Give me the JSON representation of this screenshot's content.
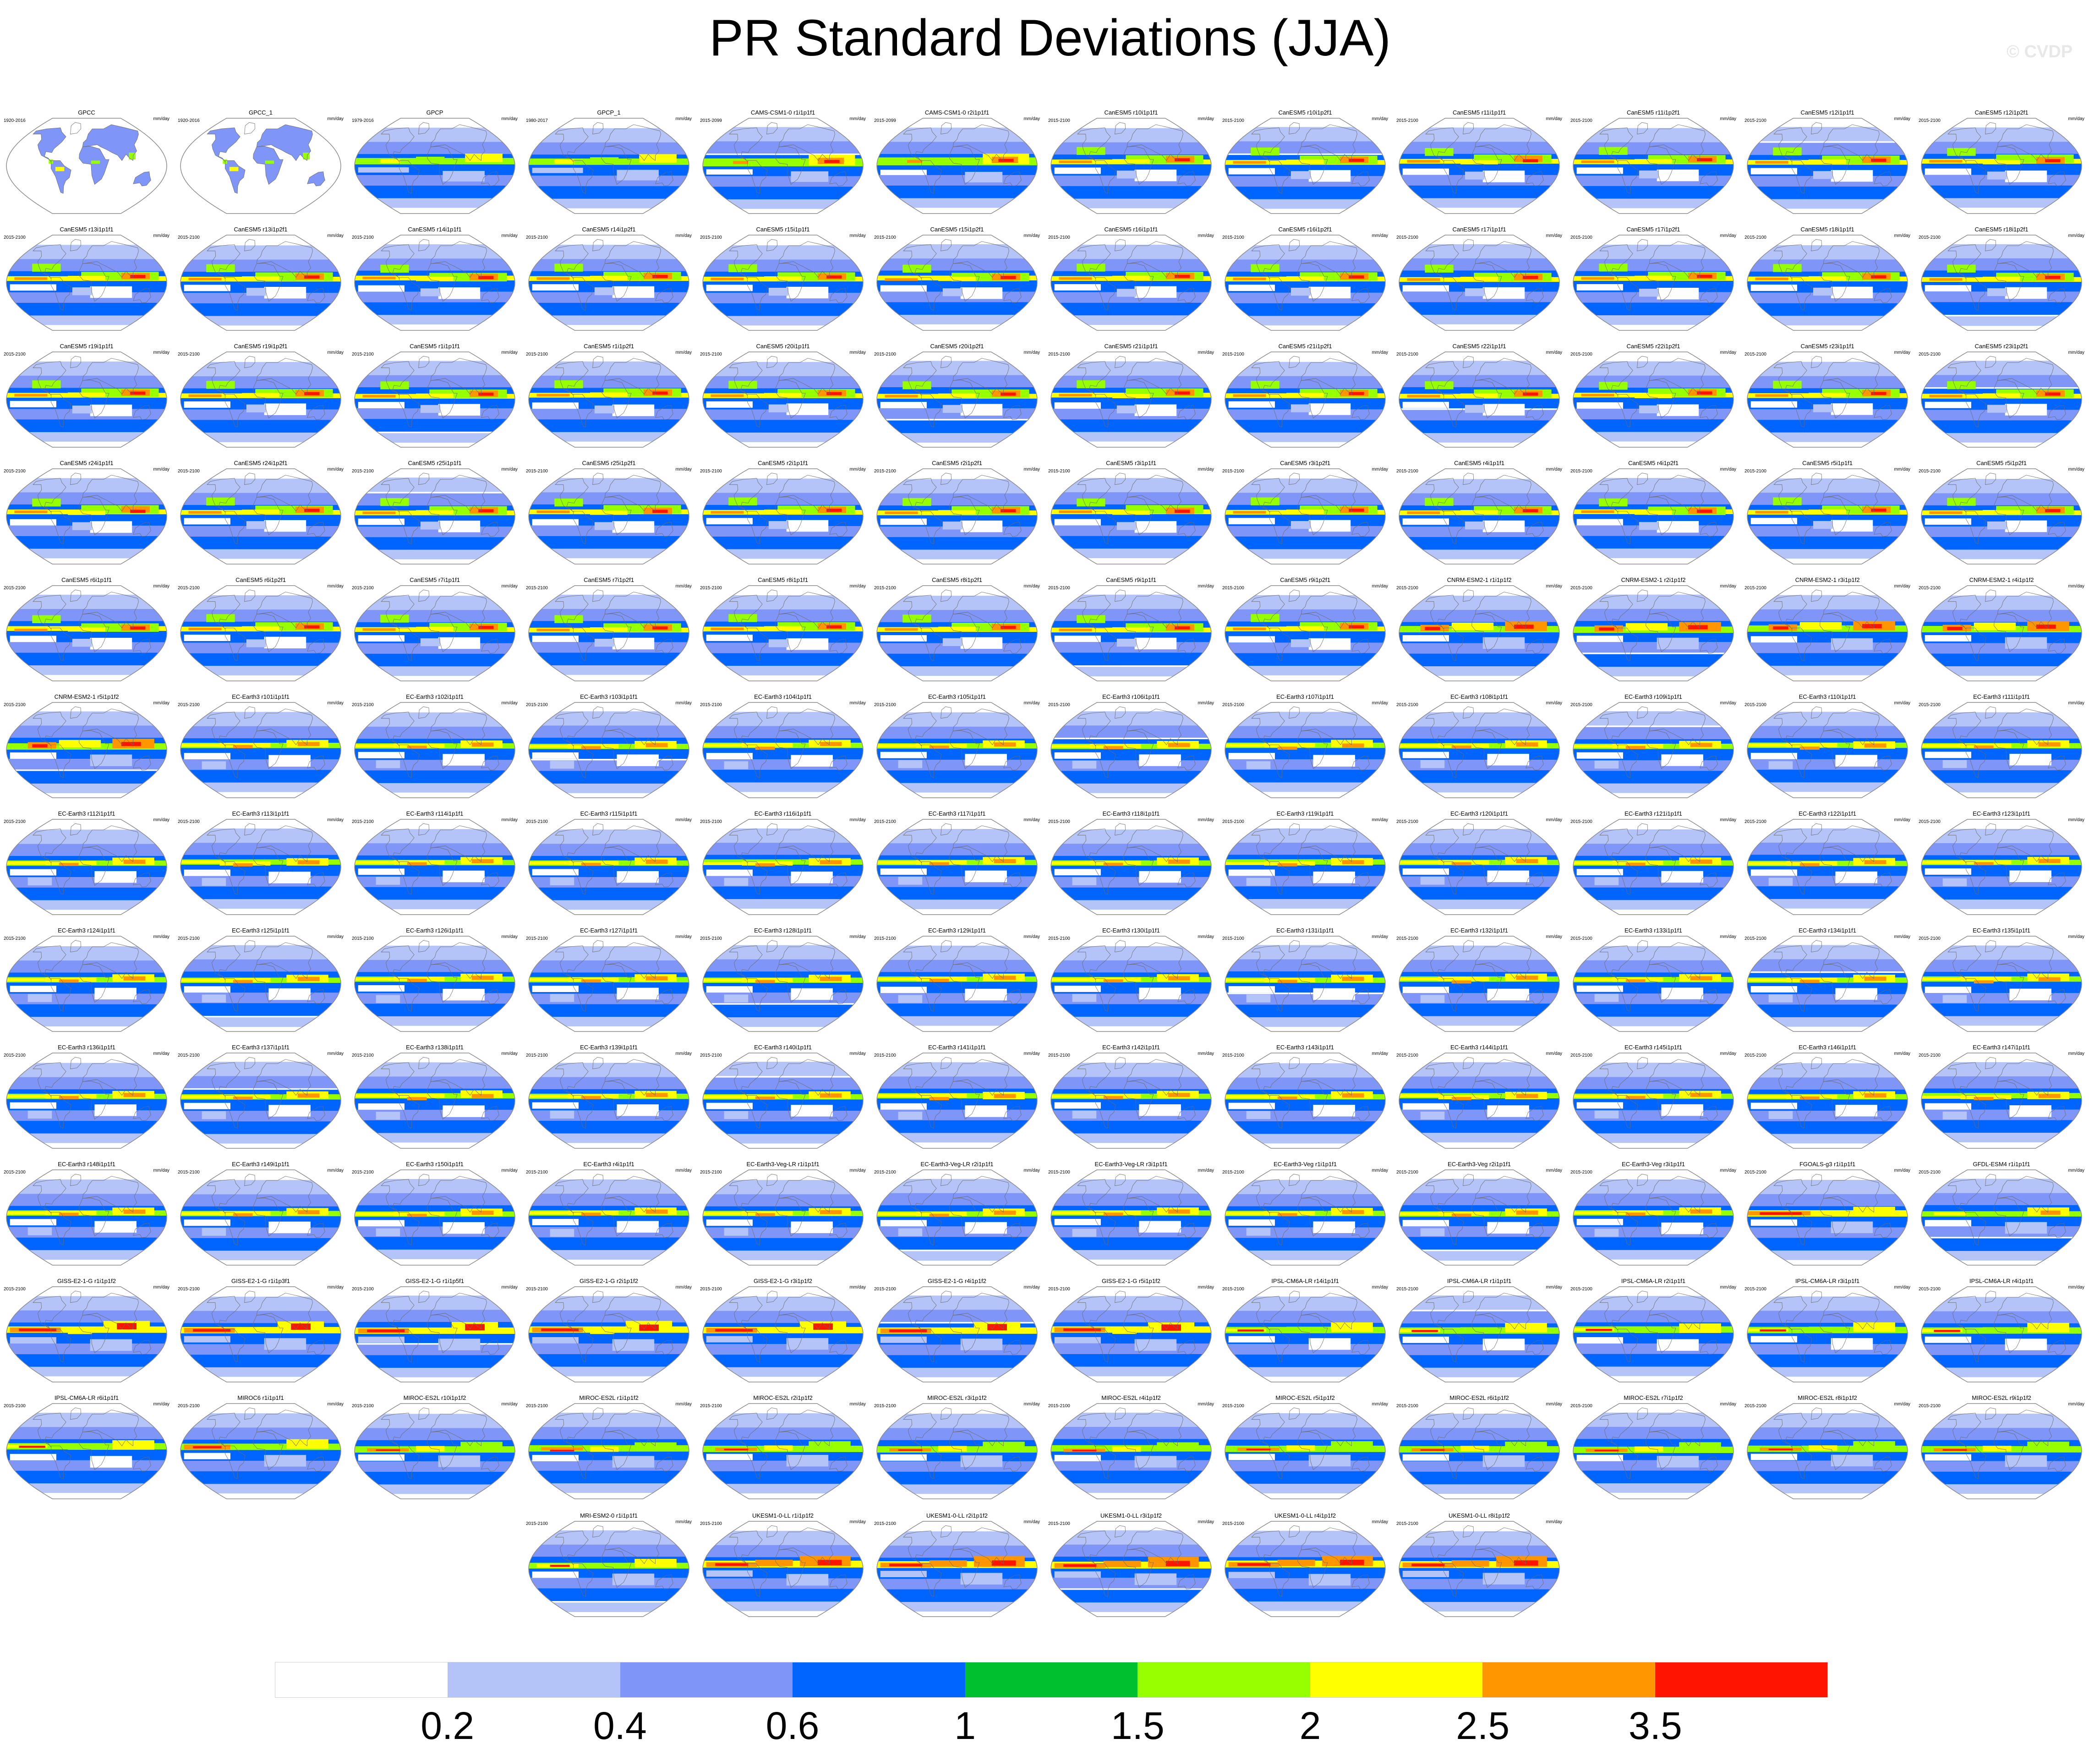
{
  "header": {
    "title": "PR Standard Deviations (JJA)",
    "watermark": "© CVDP"
  },
  "panel_units": "mm/day",
  "colors": {
    "background": "#ffffff",
    "map_outline": "#8a8a8a",
    "coastline": "#6b6b6b"
  },
  "chart_data": {
    "type": "heatmap",
    "title": "PR Standard Deviations (JJA)",
    "units": "mm/day",
    "map_projection": "robinson-global",
    "colorbar": {
      "levels": [
        "0.2",
        "0.4",
        "0.6",
        "1",
        "1.5",
        "2",
        "2.5",
        "3.5"
      ],
      "colors": [
        "#ffffff",
        "#b4c3f8",
        "#7f95f8",
        "#0064ff",
        "#00c030",
        "#96ff00",
        "#ffff00",
        "#ff9600",
        "#ff1400"
      ]
    },
    "panels": [
      {
        "title": "GPCC",
        "years": "1920-2016",
        "style": "obs_land"
      },
      {
        "title": "GPCC_1",
        "years": "1920-2016",
        "style": "obs_land"
      },
      {
        "title": "GPCP",
        "years": "1979-2016",
        "style": "obs"
      },
      {
        "title": "GPCP_1",
        "years": "1980-2017",
        "style": "obs"
      },
      {
        "title": "CAMS-CSM1-0 r1i1p1f1",
        "years": "2015-2099",
        "style": "cams"
      },
      {
        "title": "CAMS-CSM1-0 r2i1p1f1",
        "years": "2015-2099",
        "style": "cams"
      },
      {
        "title": "CanESM5 r10i1p1f1",
        "years": "2015-2100",
        "style": "canesm"
      },
      {
        "title": "CanESM5 r10i1p2f1",
        "years": "2015-2100",
        "style": "canesm"
      },
      {
        "title": "CanESM5 r11i1p1f1",
        "years": "2015-2100",
        "style": "canesm"
      },
      {
        "title": "CanESM5 r11i1p2f1",
        "years": "2015-2100",
        "style": "canesm"
      },
      {
        "title": "CanESM5 r12i1p1f1",
        "years": "2015-2100",
        "style": "canesm"
      },
      {
        "title": "CanESM5 r12i1p2f1",
        "years": "2015-2100",
        "style": "canesm"
      },
      {
        "title": "CanESM5 r13i1p1f1",
        "years": "2015-2100",
        "style": "canesm"
      },
      {
        "title": "CanESM5 r13i1p2f1",
        "years": "2015-2100",
        "style": "canesm"
      },
      {
        "title": "CanESM5 r14i1p1f1",
        "years": "2015-2100",
        "style": "canesm"
      },
      {
        "title": "CanESM5 r14i1p2f1",
        "years": "2015-2100",
        "style": "canesm"
      },
      {
        "title": "CanESM5 r15i1p1f1",
        "years": "2015-2100",
        "style": "canesm"
      },
      {
        "title": "CanESM5 r15i1p2f1",
        "years": "2015-2100",
        "style": "canesm"
      },
      {
        "title": "CanESM5 r16i1p1f1",
        "years": "2015-2100",
        "style": "canesm"
      },
      {
        "title": "CanESM5 r16i1p2f1",
        "years": "2015-2100",
        "style": "canesm"
      },
      {
        "title": "CanESM5 r17i1p1f1",
        "years": "2015-2100",
        "style": "canesm"
      },
      {
        "title": "CanESM5 r17i1p2f1",
        "years": "2015-2100",
        "style": "canesm"
      },
      {
        "title": "CanESM5 r18i1p1f1",
        "years": "2015-2100",
        "style": "canesm"
      },
      {
        "title": "CanESM5 r18i1p2f1",
        "years": "2015-2100",
        "style": "canesm"
      },
      {
        "title": "CanESM5 r19i1p1f1",
        "years": "2015-2100",
        "style": "canesm"
      },
      {
        "title": "CanESM5 r19i1p2f1",
        "years": "2015-2100",
        "style": "canesm"
      },
      {
        "title": "CanESM5 r1i1p1f1",
        "years": "2015-2100",
        "style": "canesm"
      },
      {
        "title": "CanESM5 r1i1p2f1",
        "years": "2015-2100",
        "style": "canesm"
      },
      {
        "title": "CanESM5 r20i1p1f1",
        "years": "2015-2100",
        "style": "canesm"
      },
      {
        "title": "CanESM5 r20i1p2f1",
        "years": "2015-2100",
        "style": "canesm"
      },
      {
        "title": "CanESM5 r21i1p1f1",
        "years": "2015-2100",
        "style": "canesm"
      },
      {
        "title": "CanESM5 r21i1p2f1",
        "years": "2015-2100",
        "style": "canesm"
      },
      {
        "title": "CanESM5 r22i1p1f1",
        "years": "2015-2100",
        "style": "canesm"
      },
      {
        "title": "CanESM5 r22i1p2f1",
        "years": "2015-2100",
        "style": "canesm"
      },
      {
        "title": "CanESM5 r23i1p1f1",
        "years": "2015-2100",
        "style": "canesm"
      },
      {
        "title": "CanESM5 r23i1p2f1",
        "years": "2015-2100",
        "style": "canesm"
      },
      {
        "title": "CanESM5 r24i1p1f1",
        "years": "2015-2100",
        "style": "canesm"
      },
      {
        "title": "CanESM5 r24i1p2f1",
        "years": "2015-2100",
        "style": "canesm"
      },
      {
        "title": "CanESM5 r25i1p1f1",
        "years": "2015-2100",
        "style": "canesm"
      },
      {
        "title": "CanESM5 r25i1p2f1",
        "years": "2015-2100",
        "style": "canesm"
      },
      {
        "title": "CanESM5 r2i1p1f1",
        "years": "2015-2100",
        "style": "canesm"
      },
      {
        "title": "CanESM5 r2i1p2f1",
        "years": "2015-2100",
        "style": "canesm"
      },
      {
        "title": "CanESM5 r3i1p1f1",
        "years": "2015-2100",
        "style": "canesm"
      },
      {
        "title": "CanESM5 r3i1p2f1",
        "years": "2015-2100",
        "style": "canesm"
      },
      {
        "title": "CanESM5 r4i1p1f1",
        "years": "2015-2100",
        "style": "canesm"
      },
      {
        "title": "CanESM5 r4i1p2f1",
        "years": "2015-2100",
        "style": "canesm"
      },
      {
        "title": "CanESM5 r5i1p1f1",
        "years": "2015-2100",
        "style": "canesm"
      },
      {
        "title": "CanESM5 r5i1p2f1",
        "years": "2015-2100",
        "style": "canesm"
      },
      {
        "title": "CanESM5 r6i1p1f1",
        "years": "2015-2100",
        "style": "canesm"
      },
      {
        "title": "CanESM5 r6i1p2f1",
        "years": "2015-2100",
        "style": "canesm"
      },
      {
        "title": "CanESM5 r7i1p1f1",
        "years": "2015-2100",
        "style": "canesm"
      },
      {
        "title": "CanESM5 r7i1p2f1",
        "years": "2015-2100",
        "style": "canesm"
      },
      {
        "title": "CanESM5 r8i1p1f1",
        "years": "2015-2100",
        "style": "canesm"
      },
      {
        "title": "CanESM5 r8i1p2f1",
        "years": "2015-2100",
        "style": "canesm"
      },
      {
        "title": "CanESM5 r9i1p1f1",
        "years": "2015-2100",
        "style": "canesm"
      },
      {
        "title": "CanESM5 r9i1p2f1",
        "years": "2015-2100",
        "style": "canesm"
      },
      {
        "title": "CNRM-ESM2-1 r1i1p1f2",
        "years": "2015-2100",
        "style": "cnrm"
      },
      {
        "title": "CNRM-ESM2-1 r2i1p1f2",
        "years": "2015-2100",
        "style": "cnrm"
      },
      {
        "title": "CNRM-ESM2-1 r3i1p1f2",
        "years": "2015-2100",
        "style": "cnrm"
      },
      {
        "title": "CNRM-ESM2-1 r4i1p1f2",
        "years": "2015-2100",
        "style": "cnrm"
      },
      {
        "title": "CNRM-ESM2-1 r5i1p1f2",
        "years": "2015-2100",
        "style": "cnrm"
      },
      {
        "title": "EC-Earth3 r101i1p1f1",
        "years": "2015-2100",
        "style": "ecearth"
      },
      {
        "title": "EC-Earth3 r102i1p1f1",
        "years": "2015-2100",
        "style": "ecearth"
      },
      {
        "title": "EC-Earth3 r103i1p1f1",
        "years": "2015-2100",
        "style": "ecearth"
      },
      {
        "title": "EC-Earth3 r104i1p1f1",
        "years": "2015-2100",
        "style": "ecearth"
      },
      {
        "title": "EC-Earth3 r105i1p1f1",
        "years": "2015-2100",
        "style": "ecearth"
      },
      {
        "title": "EC-Earth3 r106i1p1f1",
        "years": "2015-2100",
        "style": "ecearth"
      },
      {
        "title": "EC-Earth3 r107i1p1f1",
        "years": "2015-2100",
        "style": "ecearth"
      },
      {
        "title": "EC-Earth3 r108i1p1f1",
        "years": "2015-2100",
        "style": "ecearth"
      },
      {
        "title": "EC-Earth3 r109i1p1f1",
        "years": "2015-2100",
        "style": "ecearth"
      },
      {
        "title": "EC-Earth3 r110i1p1f1",
        "years": "2015-2100",
        "style": "ecearth"
      },
      {
        "title": "EC-Earth3 r111i1p1f1",
        "years": "2015-2100",
        "style": "ecearth"
      },
      {
        "title": "EC-Earth3 r112i1p1f1",
        "years": "2015-2100",
        "style": "ecearth"
      },
      {
        "title": "EC-Earth3 r113i1p1f1",
        "years": "2015-2100",
        "style": "ecearth"
      },
      {
        "title": "EC-Earth3 r114i1p1f1",
        "years": "2015-2100",
        "style": "ecearth"
      },
      {
        "title": "EC-Earth3 r115i1p1f1",
        "years": "2015-2100",
        "style": "ecearth"
      },
      {
        "title": "EC-Earth3 r116i1p1f1",
        "years": "2015-2100",
        "style": "ecearth"
      },
      {
        "title": "EC-Earth3 r117i1p1f1",
        "years": "2015-2100",
        "style": "ecearth"
      },
      {
        "title": "EC-Earth3 r118i1p1f1",
        "years": "2015-2100",
        "style": "ecearth"
      },
      {
        "title": "EC-Earth3 r119i1p1f1",
        "years": "2015-2100",
        "style": "ecearth"
      },
      {
        "title": "EC-Earth3 r120i1p1f1",
        "years": "2015-2100",
        "style": "ecearth"
      },
      {
        "title": "EC-Earth3 r121i1p1f1",
        "years": "2015-2100",
        "style": "ecearth"
      },
      {
        "title": "EC-Earth3 r122i1p1f1",
        "years": "2015-2100",
        "style": "ecearth"
      },
      {
        "title": "EC-Earth3 r123i1p1f1",
        "years": "2015-2100",
        "style": "ecearth"
      },
      {
        "title": "EC-Earth3 r124i1p1f1",
        "years": "2015-2100",
        "style": "ecearth"
      },
      {
        "title": "EC-Earth3 r125i1p1f1",
        "years": "2015-2100",
        "style": "ecearth"
      },
      {
        "title": "EC-Earth3 r126i1p1f1",
        "years": "2015-2100",
        "style": "ecearth"
      },
      {
        "title": "EC-Earth3 r127i1p1f1",
        "years": "2015-2100",
        "style": "ecearth"
      },
      {
        "title": "EC-Earth3 r128i1p1f1",
        "years": "2015-2100",
        "style": "ecearth"
      },
      {
        "title": "EC-Earth3 r129i1p1f1",
        "years": "2015-2100",
        "style": "ecearth"
      },
      {
        "title": "EC-Earth3 r130i1p1f1",
        "years": "2015-2100",
        "style": "ecearth"
      },
      {
        "title": "EC-Earth3 r131i1p1f1",
        "years": "2015-2100",
        "style": "ecearth"
      },
      {
        "title": "EC-Earth3 r132i1p1f1",
        "years": "2015-2100",
        "style": "ecearth"
      },
      {
        "title": "EC-Earth3 r133i1p1f1",
        "years": "2015-2100",
        "style": "ecearth"
      },
      {
        "title": "EC-Earth3 r134i1p1f1",
        "years": "2015-2100",
        "style": "ecearth"
      },
      {
        "title": "EC-Earth3 r135i1p1f1",
        "years": "2015-2100",
        "style": "ecearth"
      },
      {
        "title": "EC-Earth3 r136i1p1f1",
        "years": "2015-2100",
        "style": "ecearth"
      },
      {
        "title": "EC-Earth3 r137i1p1f1",
        "years": "2015-2100",
        "style": "ecearth"
      },
      {
        "title": "EC-Earth3 r138i1p1f1",
        "years": "2015-2100",
        "style": "ecearth"
      },
      {
        "title": "EC-Earth3 r139i1p1f1",
        "years": "2015-2100",
        "style": "ecearth"
      },
      {
        "title": "EC-Earth3 r140i1p1f1",
        "years": "2015-2100",
        "style": "ecearth"
      },
      {
        "title": "EC-Earth3 r141i1p1f1",
        "years": "2015-2100",
        "style": "ecearth"
      },
      {
        "title": "EC-Earth3 r142i1p1f1",
        "years": "2015-2100",
        "style": "ecearth"
      },
      {
        "title": "EC-Earth3 r143i1p1f1",
        "years": "2015-2100",
        "style": "ecearth"
      },
      {
        "title": "EC-Earth3 r144i1p1f1",
        "years": "2015-2100",
        "style": "ecearth"
      },
      {
        "title": "EC-Earth3 r145i1p1f1",
        "years": "2015-2100",
        "style": "ecearth"
      },
      {
        "title": "EC-Earth3 r146i1p1f1",
        "years": "2015-2100",
        "style": "ecearth"
      },
      {
        "title": "EC-Earth3 r147i1p1f1",
        "years": "2015-2100",
        "style": "ecearth"
      },
      {
        "title": "EC-Earth3 r148i1p1f1",
        "years": "2015-2100",
        "style": "ecearth"
      },
      {
        "title": "EC-Earth3 r149i1p1f1",
        "years": "2015-2100",
        "style": "ecearth"
      },
      {
        "title": "EC-Earth3 r150i1p1f1",
        "years": "2015-2100",
        "style": "ecearth"
      },
      {
        "title": "EC-Earth3 r4i1p1f1",
        "years": "2015-2100",
        "style": "ecearth"
      },
      {
        "title": "EC-Earth3-Veg-LR r1i1p1f1",
        "years": "2015-2100",
        "style": "ecearth"
      },
      {
        "title": "EC-Earth3-Veg-LR r2i1p1f1",
        "years": "2015-2100",
        "style": "ecearth"
      },
      {
        "title": "EC-Earth3-Veg-LR r3i1p1f1",
        "years": "2015-2100",
        "style": "ecearth"
      },
      {
        "title": "EC-Earth3-Veg r1i1p1f1",
        "years": "2015-2100",
        "style": "ecearth"
      },
      {
        "title": "EC-Earth3-Veg r2i1p1f1",
        "years": "2015-2100",
        "style": "ecearth"
      },
      {
        "title": "EC-Earth3-Veg r3i1p1f1",
        "years": "2015-2100",
        "style": "ecearth"
      },
      {
        "title": "FGOALS-g3 r1i1p1f1",
        "years": "2015-2100",
        "style": "fgoals"
      },
      {
        "title": "GFDL-ESM4 r1i1p1f1",
        "years": "2015-2100",
        "style": "gfdl"
      },
      {
        "title": "GISS-E2-1-G r1i1p1f2",
        "years": "2015-2100",
        "style": "giss"
      },
      {
        "title": "GISS-E2-1-G r1i1p3f1",
        "years": "2015-2100",
        "style": "giss"
      },
      {
        "title": "GISS-E2-1-G r1i1p5f1",
        "years": "2015-2100",
        "style": "giss"
      },
      {
        "title": "GISS-E2-1-G r2i1p1f2",
        "years": "2015-2100",
        "style": "giss"
      },
      {
        "title": "GISS-E2-1-G r3i1p1f2",
        "years": "2015-2100",
        "style": "giss"
      },
      {
        "title": "GISS-E2-1-G r4i1p1f2",
        "years": "2015-2100",
        "style": "giss"
      },
      {
        "title": "GISS-E2-1-G r5i1p1f2",
        "years": "2015-2100",
        "style": "giss"
      },
      {
        "title": "IPSL-CM6A-LR r14i1p1f1",
        "years": "2015-2100",
        "style": "ipsl"
      },
      {
        "title": "IPSL-CM6A-LR r1i1p1f1",
        "years": "2015-2100",
        "style": "ipsl"
      },
      {
        "title": "IPSL-CM6A-LR r2i1p1f1",
        "years": "2015-2100",
        "style": "ipsl"
      },
      {
        "title": "IPSL-CM6A-LR r3i1p1f1",
        "years": "2015-2100",
        "style": "ipsl"
      },
      {
        "title": "IPSL-CM6A-LR r4i1p1f1",
        "years": "2015-2100",
        "style": "ipsl"
      },
      {
        "title": "IPSL-CM6A-LR r6i1p1f1",
        "years": "2015-2100",
        "style": "ipsl"
      },
      {
        "title": "MIROC6 r1i1p1f1",
        "years": "2015-2100",
        "style": "miroc6"
      },
      {
        "title": "MIROC-ES2L r10i1p1f2",
        "years": "2015-2100",
        "style": "miroces"
      },
      {
        "title": "MIROC-ES2L r1i1p1f2",
        "years": "2015-2100",
        "style": "miroces"
      },
      {
        "title": "MIROC-ES2L r2i1p1f2",
        "years": "2015-2100",
        "style": "miroces"
      },
      {
        "title": "MIROC-ES2L r3i1p1f2",
        "years": "2015-2100",
        "style": "miroces"
      },
      {
        "title": "MIROC-ES2L r4i1p1f2",
        "years": "2015-2100",
        "style": "miroces"
      },
      {
        "title": "MIROC-ES2L r5i1p1f2",
        "years": "2015-2100",
        "style": "miroces"
      },
      {
        "title": "MIROC-ES2L r6i1p1f2",
        "years": "2015-2100",
        "style": "miroces"
      },
      {
        "title": "MIROC-ES2L r7i1p1f2",
        "years": "2015-2100",
        "style": "miroces"
      },
      {
        "title": "MIROC-ES2L r8i1p1f2",
        "years": "2015-2100",
        "style": "miroces"
      },
      {
        "title": "MIROC-ES2L r9i1p1f2",
        "years": "2015-2100",
        "style": "miroces"
      },
      {
        "title": "MRI-ESM2-0 r1i1p1f1",
        "years": "2015-2100",
        "style": "mri"
      },
      {
        "title": "UKESM1-0-LL r1i1p1f2",
        "years": "2015-2100",
        "style": "ukesm"
      },
      {
        "title": "UKESM1-0-LL r2i1p1f2",
        "years": "2015-2100",
        "style": "ukesm"
      },
      {
        "title": "UKESM1-0-LL r3i1p1f2",
        "years": "2015-2100",
        "style": "ukesm"
      },
      {
        "title": "UKESM1-0-LL r4i1p1f2",
        "years": "2015-2100",
        "style": "ukesm"
      },
      {
        "title": "UKESM1-0-LL r8i1p1f2",
        "years": "2015-2100",
        "style": "ukesm"
      }
    ]
  }
}
